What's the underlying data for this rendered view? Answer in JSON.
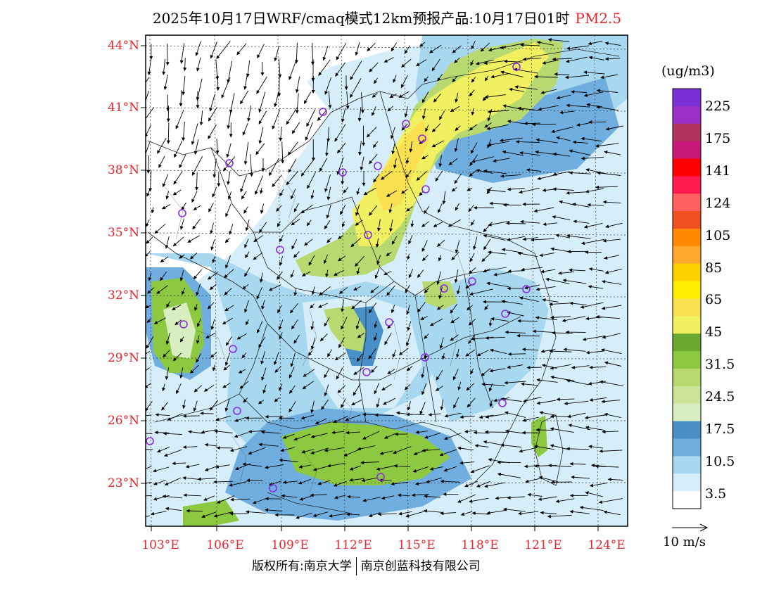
{
  "title": "2025年10月17日WRF/cmaq模式12km预报产品:10月17日01时",
  "pollutant": "PM2.5",
  "latitudes": [
    "44°N",
    "41°N",
    "38°N",
    "35°N",
    "32°N",
    "29°N",
    "26°N",
    "23°N"
  ],
  "longitudes": [
    "103°E",
    "106°E",
    "109°E",
    "112°E",
    "115°E",
    "118°E",
    "121°E",
    "124°E"
  ],
  "colorbar": {
    "unit": "(ug/m3)",
    "labels": [
      "225",
      "175",
      "141",
      "124",
      "105",
      "85",
      "65",
      "45",
      "31.5",
      "24.5",
      "17.5",
      "10.5",
      "3.5"
    ],
    "colors": [
      "#7b2fd6",
      "#9b2fc8",
      "#b0305e",
      "#c8187a",
      "#ff0000",
      "#ff1a50",
      "#ff6060",
      "#f05020",
      "#ff8800",
      "#ffa830",
      "#ffd000",
      "#ffee00",
      "#f8e050",
      "#f0f060",
      "#6aa830",
      "#8cc840",
      "#b8d870",
      "#cde39a",
      "#d8edc0",
      "#4a90c8",
      "#70aee0",
      "#a8d8f0",
      "#d6eef9",
      "#ffffff"
    ]
  },
  "wind_reference": "10 m/s",
  "footer": {
    "left": "版权所有:南京大学",
    "right": "南京创蓝科技有限公司"
  }
}
